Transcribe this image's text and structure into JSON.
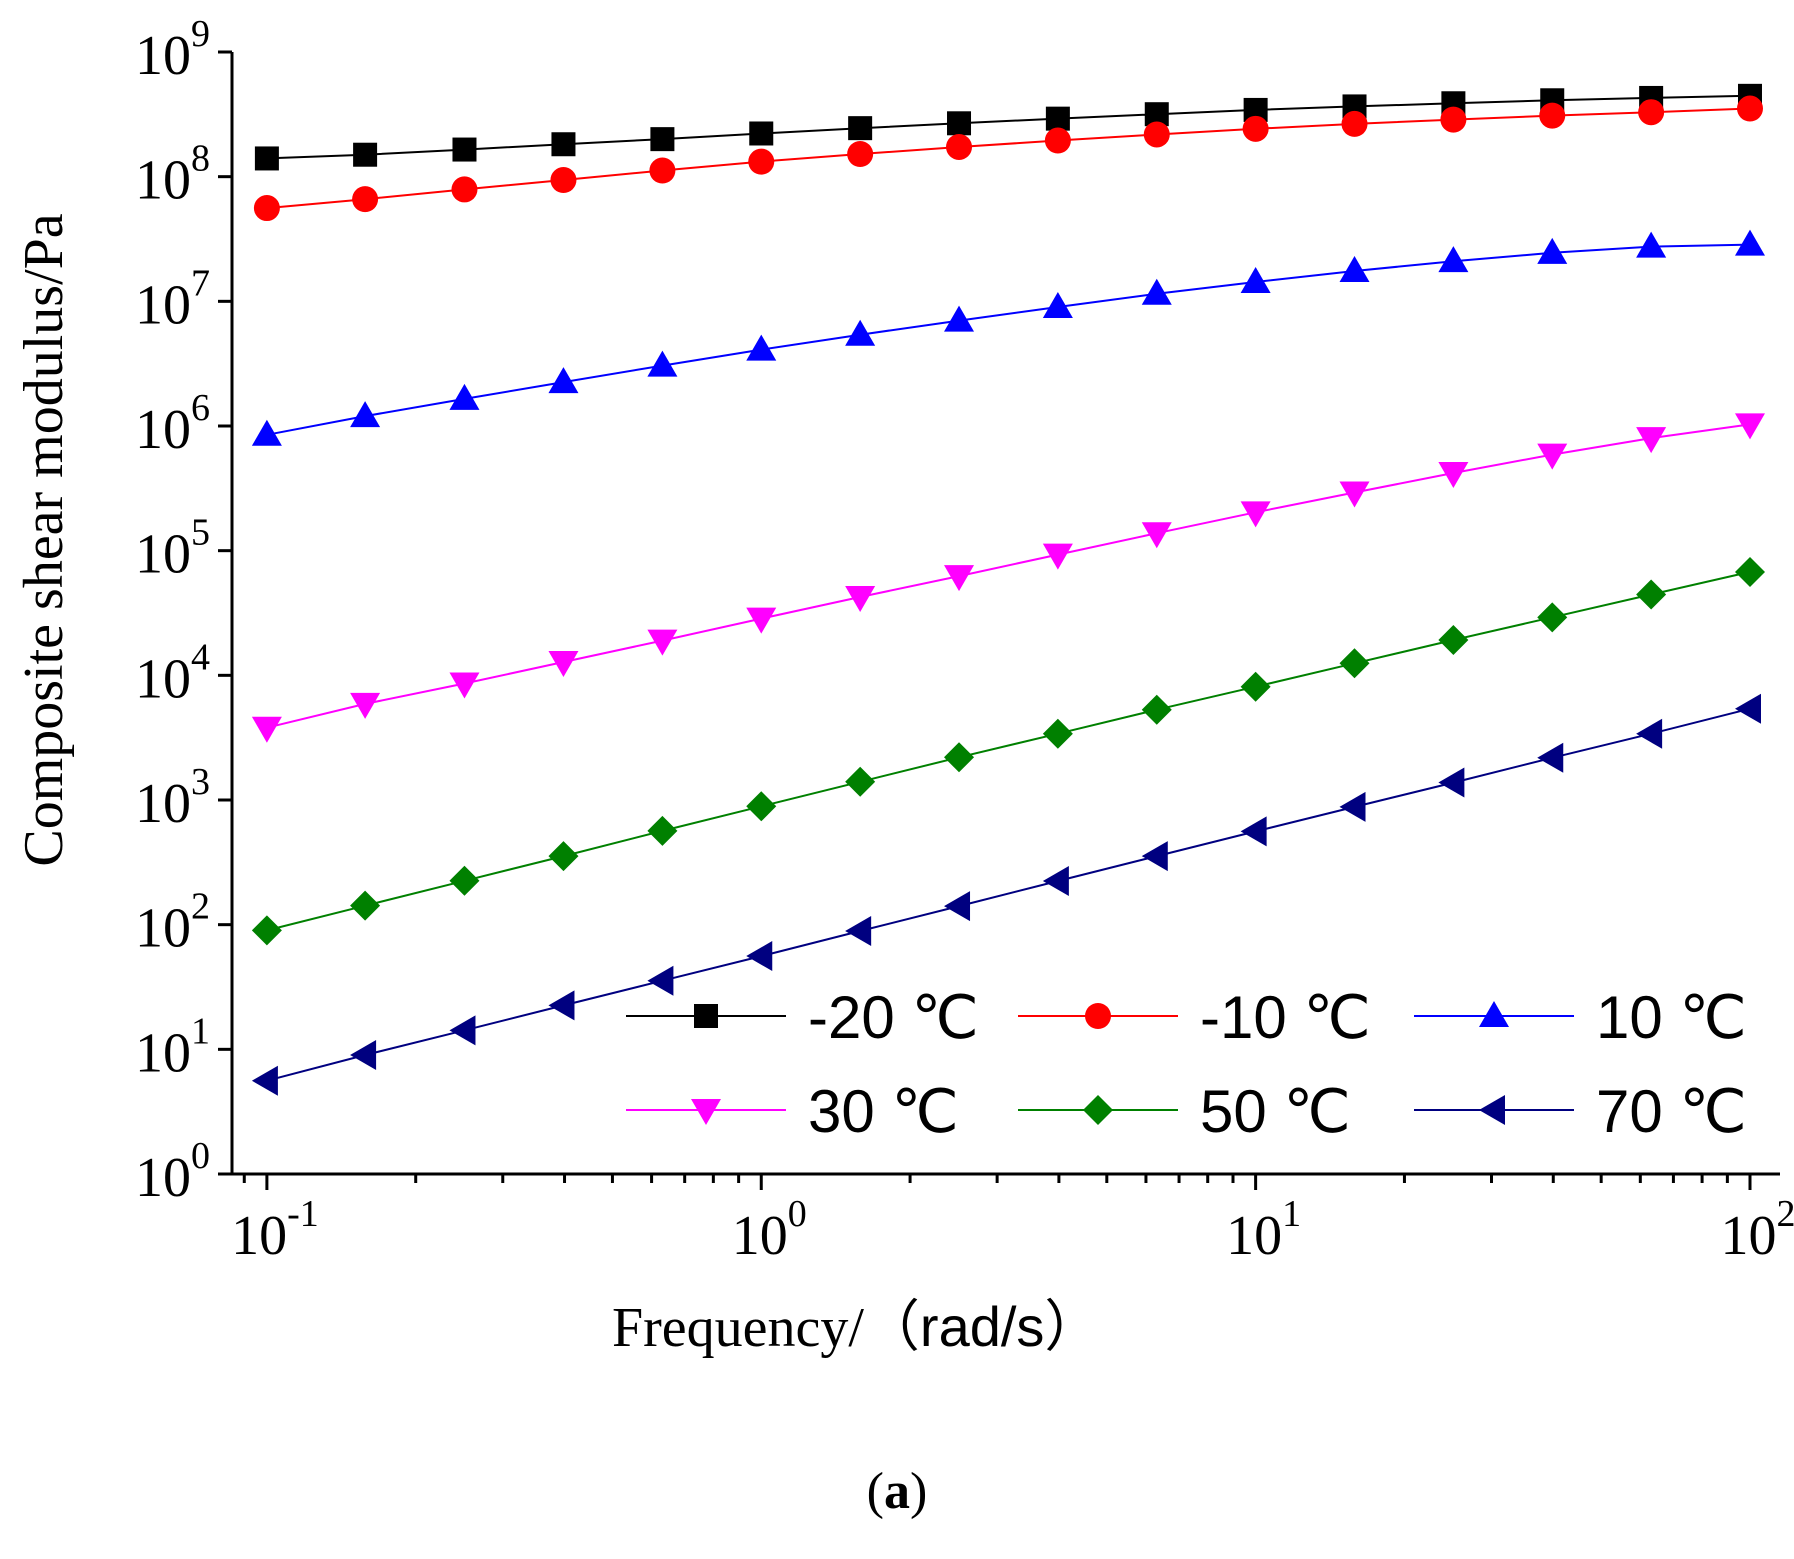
{
  "chart_data": {
    "type": "line",
    "scale": {
      "x": "log",
      "y": "log"
    },
    "xlabel_serif": "Frequency/",
    "xlabel_sans": "（rad/s）",
    "ylabel": "Composite shear modulus/Pa",
    "xlim": [
      0.085,
      115
    ],
    "ylim": [
      1,
      1000000000
    ],
    "x_ticks": [
      {
        "value": 0.1,
        "base": "10",
        "exp": "-1"
      },
      {
        "value": 1,
        "base": "10",
        "exp": "0"
      },
      {
        "value": 10,
        "base": "10",
        "exp": "1"
      },
      {
        "value": 100,
        "base": "10",
        "exp": "2"
      }
    ],
    "y_ticks": [
      {
        "value": 1,
        "base": "10",
        "exp": "0"
      },
      {
        "value": 10,
        "base": "10",
        "exp": "1"
      },
      {
        "value": 100,
        "base": "10",
        "exp": "2"
      },
      {
        "value": 1000,
        "base": "10",
        "exp": "3"
      },
      {
        "value": 10000,
        "base": "10",
        "exp": "4"
      },
      {
        "value": 100000,
        "base": "10",
        "exp": "5"
      },
      {
        "value": 1000000,
        "base": "10",
        "exp": "6"
      },
      {
        "value": 10000000,
        "base": "10",
        "exp": "7"
      },
      {
        "value": 100000000,
        "base": "10",
        "exp": "8"
      },
      {
        "value": 1000000000,
        "base": "10",
        "exp": "9"
      }
    ],
    "x": [
      0.1,
      0.158,
      0.251,
      0.398,
      0.631,
      1,
      1.585,
      2.512,
      3.981,
      6.31,
      10,
      15.85,
      25.12,
      39.81,
      63.1,
      100
    ],
    "series": [
      {
        "name": "-20 ℃",
        "color": "#000000",
        "marker": "square",
        "values": [
          140000000,
          150000000,
          165000000,
          182000000,
          200000000,
          222000000,
          245000000,
          268000000,
          292000000,
          317000000,
          343000000,
          366000000,
          388000000,
          410000000,
          428000000,
          445000000
        ]
      },
      {
        "name": "-10 ℃",
        "color": "#ff0000",
        "marker": "circle",
        "values": [
          56000000,
          66000000,
          79000000,
          94000000,
          112000000,
          132000000,
          152000000,
          173000000,
          195000000,
          218000000,
          242000000,
          265000000,
          287000000,
          309000000,
          329000000,
          352000000
        ]
      },
      {
        "name": "10 ℃",
        "color": "#0000ff",
        "marker": "triangle-up",
        "values": [
          850000,
          1200000,
          1650000,
          2250000,
          3050000,
          4100000,
          5400000,
          7000000,
          9000000,
          11500000,
          14300000,
          17500000,
          21000000,
          24500000,
          27500000,
          28500000
        ]
      },
      {
        "name": "30 ℃",
        "color": "#ff00ff",
        "marker": "triangle-down",
        "values": [
          3800,
          5900,
          8600,
          12800,
          19000,
          28500,
          42500,
          62500,
          93000,
          138000,
          203000,
          293000,
          420000,
          590000,
          800000,
          1030000
        ]
      },
      {
        "name": "50 ℃",
        "color": "#008000",
        "marker": "diamond",
        "values": [
          90,
          142,
          225,
          355,
          565,
          890,
          1400,
          2200,
          3400,
          5300,
          8100,
          12500,
          19200,
          29200,
          44500,
          67500
        ]
      },
      {
        "name": "70 ℃",
        "color": "#000080",
        "marker": "triangle-left",
        "values": [
          5.6,
          9,
          14.2,
          22.5,
          35.5,
          56,
          89,
          141,
          224,
          355,
          560,
          880,
          1380,
          2180,
          3400,
          5400
        ]
      }
    ],
    "legend": {
      "placement": "lower-right",
      "columns": 3
    }
  },
  "caption": {
    "paren_open": "(",
    "label": "a",
    "paren_close": ")"
  }
}
